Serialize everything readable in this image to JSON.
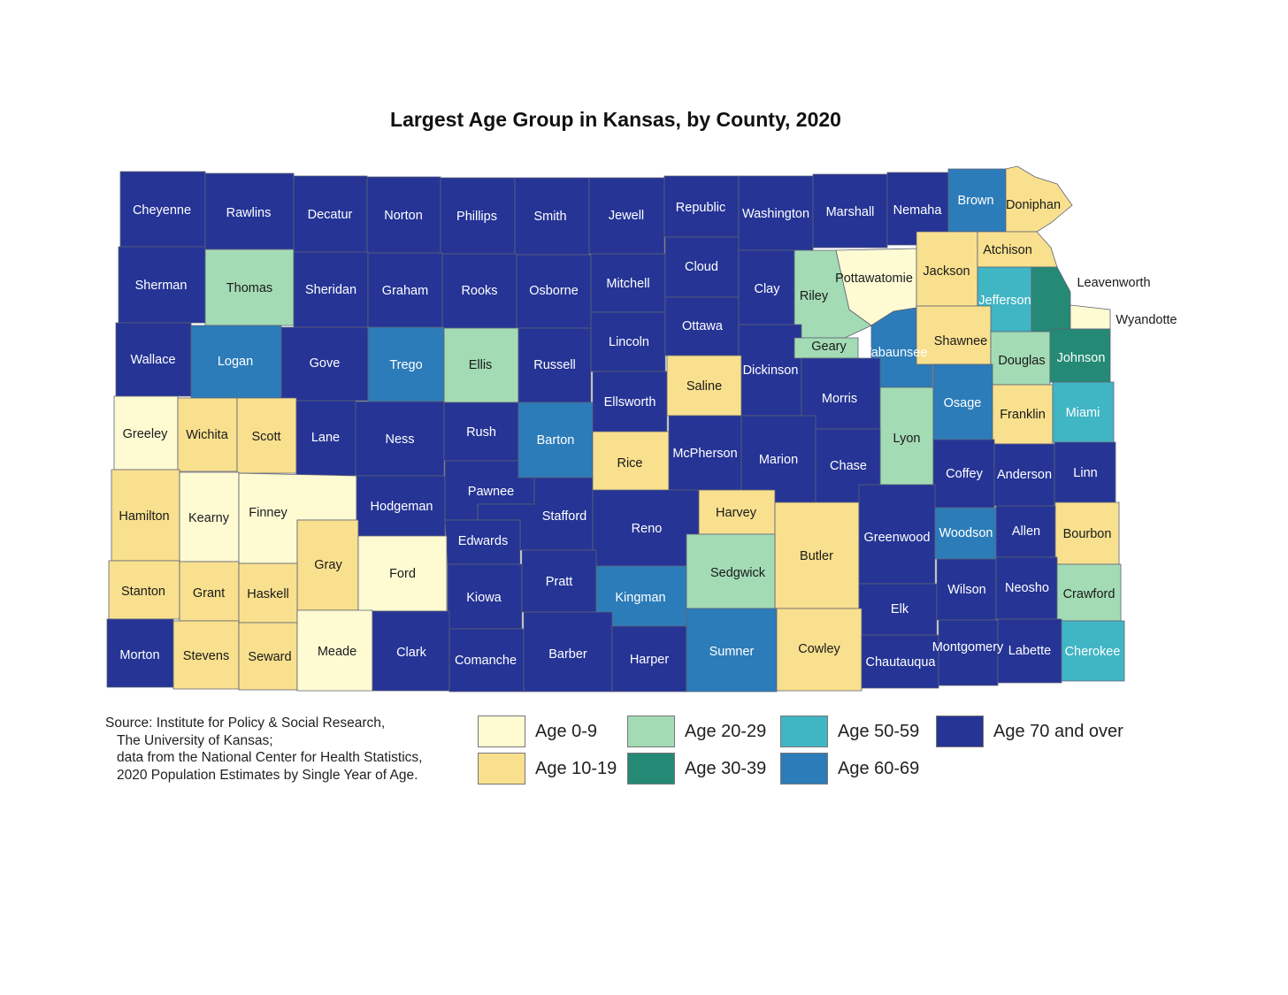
{
  "title": "Largest Age Group in Kansas, by County, 2020",
  "colors": {
    "age_0_9": "#fefbd3",
    "age_10_19": "#f8e08e",
    "age_20_29": "#a3dbb5",
    "age_30_39": "#248a75",
    "age_50_59": "#40b5c4",
    "age_60_69": "#2c7cb9",
    "age_70_over": "#253495"
  },
  "source_lines": [
    "Source: Institute for Policy & Social Research,",
    "The University of Kansas;",
    "data from the National Center for Health Statistics,",
    "2020 Population Estimates by Single Year of Age."
  ],
  "legend": [
    {
      "key": "age_0_9",
      "label": "Age 0-9"
    },
    {
      "key": "age_10_19",
      "label": "Age 10-19"
    },
    {
      "key": "age_20_29",
      "label": "Age 20-29"
    },
    {
      "key": "age_30_39",
      "label": "Age 30-39"
    },
    {
      "key": "age_50_59",
      "label": "Age 50-59"
    },
    {
      "key": "age_60_69",
      "label": "Age 60-69"
    },
    {
      "key": "age_70_over",
      "label": "Age 70 and over"
    }
  ],
  "counties": [
    {
      "name": "Cheyenne",
      "group": "age_70_over"
    },
    {
      "name": "Rawlins",
      "group": "age_70_over"
    },
    {
      "name": "Decatur",
      "group": "age_70_over"
    },
    {
      "name": "Norton",
      "group": "age_70_over"
    },
    {
      "name": "Phillips",
      "group": "age_70_over"
    },
    {
      "name": "Smith",
      "group": "age_70_over"
    },
    {
      "name": "Jewell",
      "group": "age_70_over"
    },
    {
      "name": "Republic",
      "group": "age_70_over"
    },
    {
      "name": "Washington",
      "group": "age_70_over"
    },
    {
      "name": "Marshall",
      "group": "age_70_over"
    },
    {
      "name": "Nemaha",
      "group": "age_70_over"
    },
    {
      "name": "Brown",
      "group": "age_60_69"
    },
    {
      "name": "Doniphan",
      "group": "age_10_19"
    },
    {
      "name": "Sherman",
      "group": "age_70_over"
    },
    {
      "name": "Thomas",
      "group": "age_20_29"
    },
    {
      "name": "Sheridan",
      "group": "age_70_over"
    },
    {
      "name": "Graham",
      "group": "age_70_over"
    },
    {
      "name": "Rooks",
      "group": "age_70_over"
    },
    {
      "name": "Osborne",
      "group": "age_70_over"
    },
    {
      "name": "Mitchell",
      "group": "age_70_over"
    },
    {
      "name": "Cloud",
      "group": "age_70_over"
    },
    {
      "name": "Clay",
      "group": "age_70_over"
    },
    {
      "name": "Riley",
      "group": "age_20_29"
    },
    {
      "name": "Pottawatomie",
      "group": "age_0_9"
    },
    {
      "name": "Jackson",
      "group": "age_10_19"
    },
    {
      "name": "Atchison",
      "group": "age_10_19"
    },
    {
      "name": "Jefferson",
      "group": "age_50_59"
    },
    {
      "name": "Leavenworth",
      "group": "age_30_39"
    },
    {
      "name": "Wyandotte",
      "group": "age_0_9"
    },
    {
      "name": "Wallace",
      "group": "age_70_over"
    },
    {
      "name": "Logan",
      "group": "age_60_69"
    },
    {
      "name": "Gove",
      "group": "age_70_over"
    },
    {
      "name": "Trego",
      "group": "age_60_69"
    },
    {
      "name": "Ellis",
      "group": "age_20_29"
    },
    {
      "name": "Russell",
      "group": "age_70_over"
    },
    {
      "name": "Lincoln",
      "group": "age_70_over"
    },
    {
      "name": "Ottawa",
      "group": "age_70_over"
    },
    {
      "name": "Dickinson",
      "group": "age_70_over"
    },
    {
      "name": "Geary",
      "group": "age_20_29"
    },
    {
      "name": "Wabaunsee",
      "group": "age_60_69"
    },
    {
      "name": "Shawnee",
      "group": "age_10_19"
    },
    {
      "name": "Douglas",
      "group": "age_20_29"
    },
    {
      "name": "Johnson",
      "group": "age_30_39"
    },
    {
      "name": "Greeley",
      "group": "age_0_9"
    },
    {
      "name": "Wichita",
      "group": "age_10_19"
    },
    {
      "name": "Scott",
      "group": "age_10_19"
    },
    {
      "name": "Lane",
      "group": "age_70_over"
    },
    {
      "name": "Ness",
      "group": "age_70_over"
    },
    {
      "name": "Rush",
      "group": "age_70_over"
    },
    {
      "name": "Barton",
      "group": "age_60_69"
    },
    {
      "name": "Ellsworth",
      "group": "age_70_over"
    },
    {
      "name": "Saline",
      "group": "age_10_19"
    },
    {
      "name": "Morris",
      "group": "age_70_over"
    },
    {
      "name": "Lyon",
      "group": "age_20_29"
    },
    {
      "name": "Osage",
      "group": "age_60_69"
    },
    {
      "name": "Franklin",
      "group": "age_10_19"
    },
    {
      "name": "Miami",
      "group": "age_50_59"
    },
    {
      "name": "Hamilton",
      "group": "age_10_19"
    },
    {
      "name": "Kearny",
      "group": "age_0_9"
    },
    {
      "name": "Finney",
      "group": "age_0_9"
    },
    {
      "name": "Hodgeman",
      "group": "age_70_over"
    },
    {
      "name": "Pawnee",
      "group": "age_70_over"
    },
    {
      "name": "Stafford",
      "group": "age_70_over"
    },
    {
      "name": "Rice",
      "group": "age_10_19"
    },
    {
      "name": "McPherson",
      "group": "age_70_over"
    },
    {
      "name": "Marion",
      "group": "age_70_over"
    },
    {
      "name": "Chase",
      "group": "age_70_over"
    },
    {
      "name": "Coffey",
      "group": "age_70_over"
    },
    {
      "name": "Anderson",
      "group": "age_70_over"
    },
    {
      "name": "Linn",
      "group": "age_70_over"
    },
    {
      "name": "Edwards",
      "group": "age_70_over"
    },
    {
      "name": "Gray",
      "group": "age_10_19"
    },
    {
      "name": "Ford",
      "group": "age_0_9"
    },
    {
      "name": "Reno",
      "group": "age_70_over"
    },
    {
      "name": "Harvey",
      "group": "age_10_19"
    },
    {
      "name": "Butler",
      "group": "age_10_19"
    },
    {
      "name": "Greenwood",
      "group": "age_70_over"
    },
    {
      "name": "Woodson",
      "group": "age_60_69"
    },
    {
      "name": "Allen",
      "group": "age_70_over"
    },
    {
      "name": "Bourbon",
      "group": "age_10_19"
    },
    {
      "name": "Stanton",
      "group": "age_10_19"
    },
    {
      "name": "Grant",
      "group": "age_10_19"
    },
    {
      "name": "Haskell",
      "group": "age_10_19"
    },
    {
      "name": "Kiowa",
      "group": "age_70_over"
    },
    {
      "name": "Pratt",
      "group": "age_70_over"
    },
    {
      "name": "Kingman",
      "group": "age_60_69"
    },
    {
      "name": "Sedgwick",
      "group": "age_20_29"
    },
    {
      "name": "Elk",
      "group": "age_70_over"
    },
    {
      "name": "Wilson",
      "group": "age_70_over"
    },
    {
      "name": "Neosho",
      "group": "age_70_over"
    },
    {
      "name": "Crawford",
      "group": "age_20_29"
    },
    {
      "name": "Morton",
      "group": "age_70_over"
    },
    {
      "name": "Stevens",
      "group": "age_10_19"
    },
    {
      "name": "Seward",
      "group": "age_10_19"
    },
    {
      "name": "Meade",
      "group": "age_0_9"
    },
    {
      "name": "Clark",
      "group": "age_70_over"
    },
    {
      "name": "Comanche",
      "group": "age_70_over"
    },
    {
      "name": "Barber",
      "group": "age_70_over"
    },
    {
      "name": "Harper",
      "group": "age_70_over"
    },
    {
      "name": "Sumner",
      "group": "age_60_69"
    },
    {
      "name": "Cowley",
      "group": "age_10_19"
    },
    {
      "name": "Chautauqua",
      "group": "age_70_over"
    },
    {
      "name": "Montgomery",
      "group": "age_70_over"
    },
    {
      "name": "Labette",
      "group": "age_70_over"
    },
    {
      "name": "Cherokee",
      "group": "age_50_59"
    }
  ]
}
